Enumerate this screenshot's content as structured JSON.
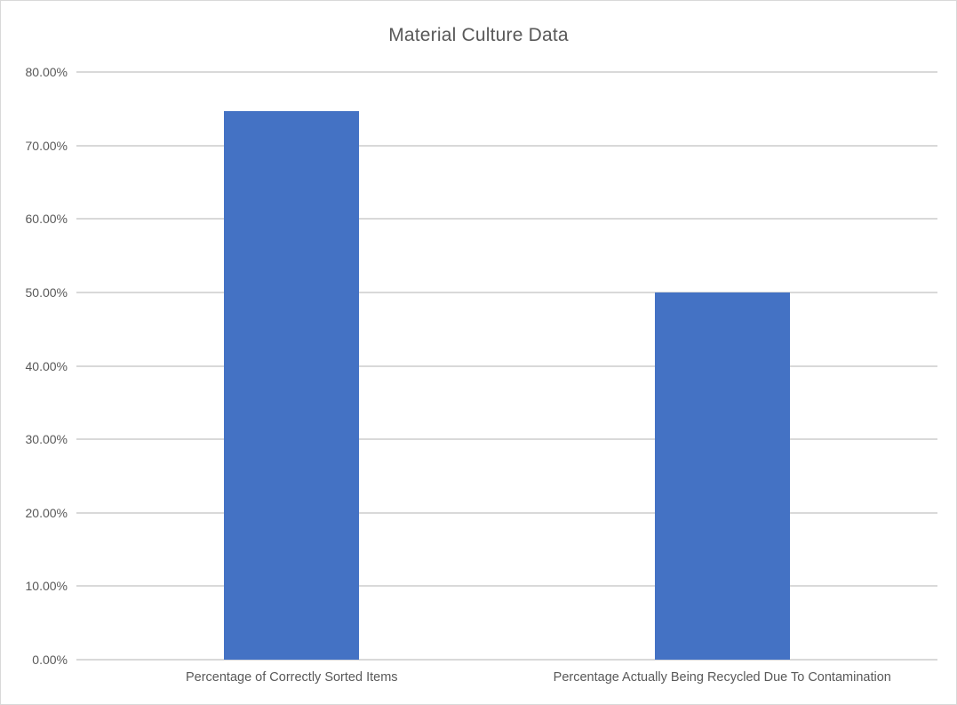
{
  "chart_data": {
    "type": "bar",
    "title": "Material Culture Data",
    "categories": [
      "Percentage of Correctly Sorted Items",
      "Percentage Actually Being Recycled Due To Contamination"
    ],
    "values": [
      74.7,
      50.0
    ],
    "value_unit": "percent",
    "xlabel": "",
    "ylabel": "",
    "ylim": [
      0,
      80
    ],
    "ytick_step": 10,
    "ytick_labels": [
      "0.00%",
      "10.00%",
      "20.00%",
      "30.00%",
      "40.00%",
      "50.00%",
      "60.00%",
      "70.00%",
      "80.00%"
    ],
    "grid": true,
    "legend": "none",
    "colors": {
      "bar": "#4472C4",
      "gridline": "#D9D9D9",
      "text": "#595959",
      "background": "#FFFFFF",
      "border": "#D9D9D9"
    }
  }
}
